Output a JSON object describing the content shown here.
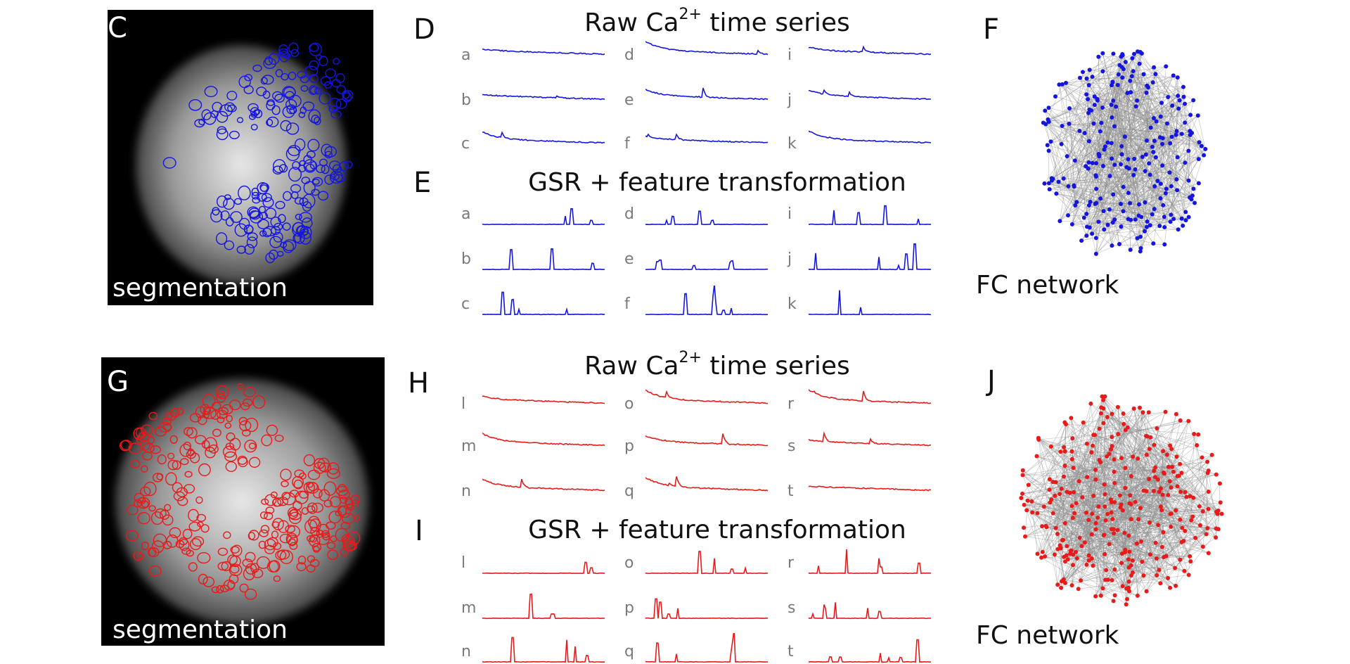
{
  "colors": {
    "top": "#1515e0",
    "bottom": "#e81a1a",
    "edge": "#8c8c8c"
  },
  "top": {
    "panel_image": "C",
    "panel_raw": "D",
    "panel_gsr": "E",
    "panel_network": "F",
    "image_caption": "segmentation",
    "raw_title_prefix": "Raw Ca",
    "raw_title_sup": "2+",
    "raw_title_suffix": " time series",
    "gsr_title": "GSR + feature transformation",
    "network_caption": "FC network",
    "labels": [
      [
        "a",
        "b",
        "c"
      ],
      [
        "d",
        "e",
        "f"
      ],
      [
        "i",
        "j",
        "k"
      ]
    ],
    "raw_labels": [
      [
        "a",
        "b",
        "c"
      ],
      [
        "d",
        "e",
        "f"
      ],
      [
        "i",
        "j",
        "k"
      ]
    ],
    "gsr_labels": [
      [
        "a",
        "b",
        "c"
      ],
      [
        "d",
        "e",
        "f"
      ],
      [
        "i",
        "j",
        "k"
      ]
    ]
  },
  "bottom": {
    "panel_image": "G",
    "panel_raw": "H",
    "panel_gsr": "I",
    "panel_network": "J",
    "image_caption": "segmentation",
    "raw_title_prefix": "Raw Ca",
    "raw_title_sup": "2+",
    "raw_title_suffix": " time series",
    "gsr_title": "GSR + feature transformation",
    "network_caption": "FC network",
    "raw_labels": [
      [
        "l",
        "m",
        "n"
      ],
      [
        "o",
        "p",
        "q"
      ],
      [
        "r",
        "s",
        "t"
      ]
    ],
    "gsr_labels": [
      [
        "l",
        "m",
        "n"
      ],
      [
        "o",
        "p",
        "q"
      ],
      [
        "r",
        "s",
        "t"
      ]
    ]
  }
}
